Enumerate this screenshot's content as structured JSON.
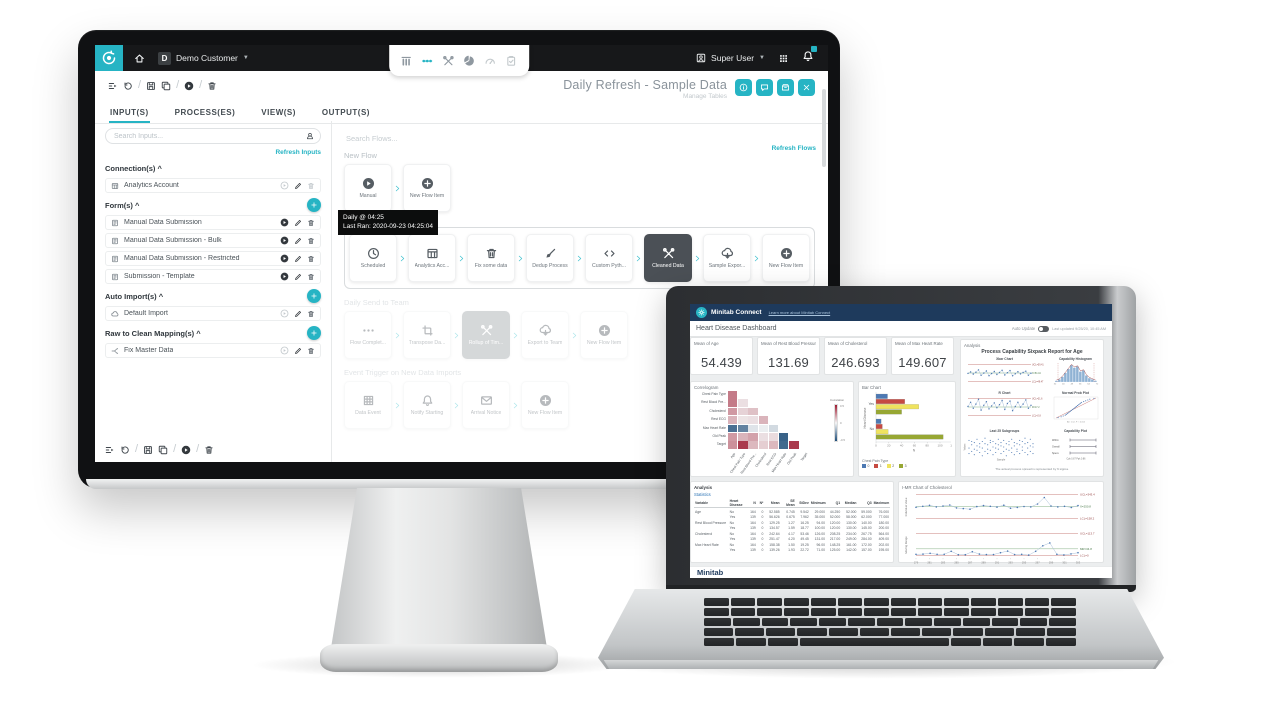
{
  "monitor": {
    "topbar": {
      "org_badge": "D",
      "org": "Demo Customer",
      "user": "Super User",
      "nav_icons": [
        {
          "icon": "columns",
          "state": "default"
        },
        {
          "icon": "flow-dots",
          "state": "active"
        },
        {
          "icon": "tools",
          "state": "default"
        },
        {
          "icon": "pie",
          "state": "default"
        },
        {
          "icon": "gauge",
          "state": "muted"
        },
        {
          "icon": "clipboard",
          "state": "muted"
        }
      ]
    },
    "toolbar_icons": [
      "flow-list",
      "history",
      "/",
      "save",
      "copy",
      "/",
      "play-c",
      "/",
      "trash"
    ],
    "header": {
      "title": "Daily Refresh - Sample Data",
      "subtitle": "Manage Tables",
      "actions": [
        "info",
        "chat",
        "box",
        "close"
      ]
    },
    "tabs": [
      {
        "label": "INPUT(S)",
        "active": true
      },
      {
        "label": "PROCESS(ES)",
        "active": false
      },
      {
        "label": "VIEW(S)",
        "active": false
      },
      {
        "label": "OUTPUT(S)",
        "active": false
      }
    ],
    "inputs_panel": {
      "search_placeholder": "Search Inputs...",
      "refresh_label": "Refresh Inputs",
      "sections": [
        {
          "label": "Connection(s) ^",
          "add": false,
          "items": [
            {
              "icon": "table",
              "label": "Analytics Account",
              "play": false,
              "trash_muted": true
            }
          ]
        },
        {
          "label": "Form(s) ^",
          "add": true,
          "items": [
            {
              "icon": "form",
              "label": "Manual Data Submission",
              "play": true,
              "trash_muted": false
            },
            {
              "icon": "form",
              "label": "Manual Data Submission - Bulk",
              "play": true,
              "trash_muted": false
            },
            {
              "icon": "form",
              "label": "Manual Data Submission - Restricted",
              "play": true,
              "trash_muted": false
            },
            {
              "icon": "form",
              "label": "Submission - Template",
              "play": true,
              "trash_muted": false
            }
          ]
        },
        {
          "label": "Auto Import(s) ^",
          "add": true,
          "items": [
            {
              "icon": "cloud",
              "label": "Default Import",
              "play": false,
              "trash_muted": false
            }
          ]
        },
        {
          "label": "Raw to Clean Mapping(s) ^",
          "add": true,
          "items": [
            {
              "icon": "branch",
              "label": "Fix Master Data",
              "play": false,
              "trash_muted": false
            }
          ]
        }
      ]
    },
    "flows_panel": {
      "search_placeholder": "Search Flows...",
      "refresh_label": "Refresh Flows",
      "tooltip": {
        "line1": "Daily @ 04:25",
        "line2": "Last Ran: 2020-09-23 04:25:04"
      },
      "flows": [
        {
          "label": "New Flow",
          "state": "normal",
          "steps": [
            {
              "icon": "play-c",
              "label": "Manual",
              "variant": ""
            },
            {
              "icon": "plus-c",
              "label": "New Flow Item",
              "variant": ""
            }
          ]
        },
        {
          "label": "",
          "state": "selected",
          "steps": [
            {
              "icon": "clock",
              "label": "Scheduled",
              "variant": ""
            },
            {
              "icon": "table",
              "label": "Analytics Acc...",
              "variant": ""
            },
            {
              "icon": "trash",
              "label": "Fix some data",
              "variant": ""
            },
            {
              "icon": "broom",
              "label": "Dedup Process",
              "variant": ""
            },
            {
              "icon": "code",
              "label": "Custom Pyth...",
              "variant": ""
            },
            {
              "icon": "tools",
              "label": "Cleaned Data",
              "variant": "dark"
            },
            {
              "icon": "cloud-down",
              "label": "Sample Expor...",
              "variant": ""
            },
            {
              "icon": "plus-c",
              "label": "New Flow Item",
              "variant": ""
            }
          ]
        },
        {
          "label": "Daily Send to Team",
          "state": "faded",
          "steps": [
            {
              "icon": "dots",
              "label": "Flow Complet...",
              "variant": ""
            },
            {
              "icon": "transpose",
              "label": "Transpose Da...",
              "variant": ""
            },
            {
              "icon": "tools",
              "label": "Rollup of Tim...",
              "variant": "grey"
            },
            {
              "icon": "cloud-down",
              "label": "Export to Team",
              "variant": ""
            },
            {
              "icon": "plus-c",
              "label": "New Flow Item",
              "variant": ""
            }
          ]
        },
        {
          "label": "Event Trigger on New Data Imports",
          "state": "faded",
          "steps": [
            {
              "icon": "grid",
              "label": "Data Event",
              "variant": ""
            },
            {
              "icon": "bell",
              "label": "Notify Starting",
              "variant": ""
            },
            {
              "icon": "mail",
              "label": "Arrival Notice",
              "variant": ""
            },
            {
              "icon": "plus-c",
              "label": "New Flow Item",
              "variant": ""
            }
          ]
        }
      ]
    }
  },
  "laptop": {
    "titlebar": {
      "brand": "Minitab Connect",
      "link": "Learn more about Minitab Connect"
    },
    "header": {
      "title": "Heart Disease Dashboard",
      "auto_update_label": "Auto Update",
      "updated": "Last updated 9/25/20, 10:45 AM"
    },
    "kpis": [
      {
        "label": "Mean of Age",
        "value": "54.439"
      },
      {
        "label": "Mean of Rest Blood Pressure",
        "value": "131.69"
      },
      {
        "label": "Mean of Cholesterol",
        "value": "246.693"
      },
      {
        "label": "Mean of Max Heart Rate",
        "value": "149.607"
      }
    ],
    "analysis_label": "Analysis",
    "stats": {
      "title": "Analysis",
      "subtitle": "Statistics",
      "columns": [
        "Variable",
        "Heart Disease",
        "N",
        "N*",
        "Mean",
        "SE Mean",
        "StDev",
        "Minimum",
        "Q1",
        "Median",
        "Q3",
        "Maximum"
      ],
      "rows": [
        [
          "Age",
          "No",
          "164",
          "0",
          "52.585",
          "0.745",
          "9.542",
          "29.000",
          "44.250",
          "52.000",
          "59.000",
          "76.000"
        ],
        [
          "",
          "Yes",
          "139",
          "0",
          "56.626",
          "0.675",
          "7.962",
          "35.000",
          "52.000",
          "58.000",
          "62.000",
          "77.000"
        ],
        [
          "Rest Blood Pressure",
          "No",
          "164",
          "0",
          "129.25",
          "1.27",
          "16.25",
          "94.00",
          "120.00",
          "130.00",
          "140.00",
          "180.00"
        ],
        [
          "",
          "Yes",
          "139",
          "0",
          "134.57",
          "1.59",
          "18.77",
          "100.00",
          "120.00",
          "130.00",
          "145.00",
          "200.00"
        ],
        [
          "Cholesterol",
          "No",
          "164",
          "0",
          "242.64",
          "4.17",
          "53.46",
          "126.00",
          "208.25",
          "234.00",
          "267.75",
          "564.00"
        ],
        [
          "",
          "Yes",
          "139",
          "0",
          "251.47",
          "4.20",
          "49.45",
          "131.00",
          "217.00",
          "249.00",
          "284.00",
          "409.00"
        ],
        [
          "Max Heart Rate",
          "No",
          "164",
          "0",
          "158.38",
          "1.50",
          "19.25",
          "96.00",
          "148.25",
          "161.00",
          "172.00",
          "202.00"
        ],
        [
          "",
          "Yes",
          "139",
          "0",
          "139.26",
          "1.93",
          "22.72",
          "71.00",
          "125.00",
          "142.00",
          "157.00",
          "195.00"
        ]
      ]
    },
    "footer_brand": "Minitab"
  },
  "chart_data": [
    {
      "id": "correlogram",
      "type": "heatmap",
      "title": "Correlogram",
      "row_labels": [
        "Chest Pain Type",
        "Rest Blood Pre...",
        "Cholesterol",
        "Rest ECG",
        "Max Heart Rate",
        "Old Peak",
        "Target"
      ],
      "col_labels": [
        "Age",
        "Chest Pain Type",
        "Rest Blood Pre...",
        "Cholesterol",
        "Rest ECG",
        "Max Heart Rate",
        "Old Peak",
        "Target"
      ],
      "matrix": [
        [
          0.28
        ],
        [
          0.28,
          0.05
        ],
        [
          0.21,
          0.08,
          0.12
        ],
        [
          0.15,
          0.04,
          0.05,
          0.15
        ],
        [
          -0.4,
          -0.34,
          -0.05,
          -0.02,
          -0.08
        ],
        [
          0.21,
          0.15,
          0.19,
          0.05,
          0.06,
          -0.44
        ],
        [
          0.23,
          0.43,
          0.14,
          0.09,
          0.14,
          -0.42,
          0.43
        ]
      ],
      "legend": {
        "title": "Correlation",
        "max": "0.5",
        "mid": "0",
        "min": "-0.5",
        "max_color": "#9e1b32",
        "mid_color": "#f4f5f5",
        "min_color": "#1f4e79"
      }
    },
    {
      "id": "barchart",
      "type": "bar",
      "title": "Bar Chart",
      "orientation": "horizontal",
      "categories": [
        "Yes",
        "No"
      ],
      "xlabel": "N",
      "ylabel": "Heart Disease",
      "xlim": [
        0,
        120
      ],
      "xticks": [
        0,
        20,
        40,
        60,
        80,
        100,
        120
      ],
      "legend_title": "Chest Pain Type",
      "series": [
        {
          "name": "0",
          "color": "#4d79b3",
          "values": [
            18,
            8
          ]
        },
        {
          "name": "1",
          "color": "#c64a42",
          "values": [
            45,
            10
          ]
        },
        {
          "name": "2",
          "color": "#efe35f",
          "values": [
            67,
            19
          ]
        },
        {
          "name": "3",
          "color": "#97a733",
          "values": [
            40,
            105
          ]
        }
      ]
    },
    {
      "id": "sixpack",
      "type": "control-sixpack",
      "title": "Process Capability Sixpack Report for Age",
      "footnote": "The actual process spread is represented by 6 sigma.",
      "panels": {
        "xbar": {
          "title": "Xbar Chart",
          "ucl": 59.41,
          "center": 54.44,
          "lcl": 49.47,
          "labels": [
            "UCL=59.41",
            "X=54.44",
            "LCL=49.47"
          ],
          "values": [
            54.2,
            55.1,
            53.8,
            54.9,
            56.2,
            53.1,
            54.4,
            55.6,
            52.9,
            54.1,
            55.3,
            53.6,
            54.8,
            56.0,
            53.3,
            54.6,
            55.8,
            52.8,
            54.0,
            55.2,
            53.9,
            54.7,
            55.5,
            53.2,
            54.3
          ]
        },
        "r": {
          "title": "R Chart",
          "ucl": 31.6,
          "center": 17.2,
          "lcl": 2.8,
          "labels": [
            "UCL=31.6",
            "R=17.2",
            "LCL=2.8"
          ],
          "values": [
            18,
            25,
            15,
            22,
            30,
            12,
            20,
            26,
            14,
            19,
            24,
            16,
            21,
            28,
            13,
            23,
            27,
            11,
            18,
            25,
            17,
            22,
            29,
            15,
            20
          ]
        },
        "subgroups": {
          "title": "Last 25 Subgroups",
          "xlabel": "Sample",
          "ylabel": "Values",
          "points": [
            [
              48,
              53,
              60
            ],
            [
              50,
              56,
              59
            ],
            [
              47,
              52,
              58
            ],
            [
              51,
              55,
              61
            ],
            [
              49,
              54,
              57
            ],
            [
              46,
              53,
              59
            ],
            [
              50,
              57,
              62
            ],
            [
              48,
              52,
              56
            ],
            [
              51,
              58,
              60
            ],
            [
              47,
              54,
              59
            ],
            [
              49,
              53,
              57
            ],
            [
              52,
              56,
              61
            ],
            [
              48,
              55,
              58
            ],
            [
              50,
              54,
              60
            ],
            [
              46,
              52,
              57
            ],
            [
              51,
              56,
              59
            ],
            [
              49,
              53,
              61
            ],
            [
              47,
              55,
              58
            ],
            [
              50,
              52,
              57
            ],
            [
              48,
              56,
              60
            ],
            [
              51,
              54,
              59
            ],
            [
              49,
              57,
              62
            ],
            [
              47,
              53,
              58
            ],
            [
              50,
              55,
              61
            ],
            [
              48,
              54,
              57
            ]
          ]
        },
        "histogram": {
          "title": "Capability Histogram",
          "bins": [
            1,
            2,
            4,
            7,
            10,
            13,
            11,
            12,
            8,
            9,
            5,
            3,
            2,
            1
          ],
          "ticks": [
            32,
            40,
            48,
            56,
            64,
            72
          ]
        },
        "probplot": {
          "title": "Normal Prob Plot",
          "subtitle": "AD: 1.52, P: < 0.005",
          "values": [
            35,
            38,
            40,
            42,
            43,
            44,
            45,
            46,
            47,
            48,
            49,
            50,
            51,
            52,
            53,
            54,
            55,
            56,
            57,
            58,
            60,
            62,
            64,
            66,
            70
          ]
        },
        "capability": {
          "title": "Capability Plot",
          "groups": [
            "Within",
            "Overall",
            "Specs"
          ],
          "stats": "Cpk 0.87   Ppk 0.86"
        }
      }
    },
    {
      "id": "imr",
      "type": "control-imr",
      "title": "I-MR Chart of Cholesterol",
      "xlabel": "Observation",
      "xticks": [
        279,
        281,
        283,
        285,
        287,
        289,
        291,
        293,
        295,
        297,
        299,
        301,
        303
      ],
      "individual": {
        "ylabel": "Individual Value",
        "ucl": 343.4,
        "center": 250.8,
        "lcl": 158.2,
        "labels": [
          "UCL=343.4",
          "X=250.8",
          "LCL=158.2"
        ],
        "values": [
          245,
          252,
          260,
          248,
          255,
          262,
          240,
          235,
          230,
          250,
          258,
          252,
          246,
          261,
          238,
          244,
          251,
          248,
          270,
          320,
          255,
          248,
          252,
          243,
          258
        ]
      },
      "moving_range": {
        "ylabel": "Moving Range",
        "ucl": 113.7,
        "center": 34.8,
        "lcl": 0,
        "labels": [
          "UCL=113.7",
          "MR=34.8",
          "LCL=0"
        ],
        "values": [
          7,
          8,
          12,
          7,
          7,
          22,
          5,
          5,
          20,
          8,
          6,
          6,
          15,
          23,
          6,
          7,
          3,
          22,
          50,
          65,
          7,
          4,
          9,
          15
        ]
      }
    }
  ]
}
